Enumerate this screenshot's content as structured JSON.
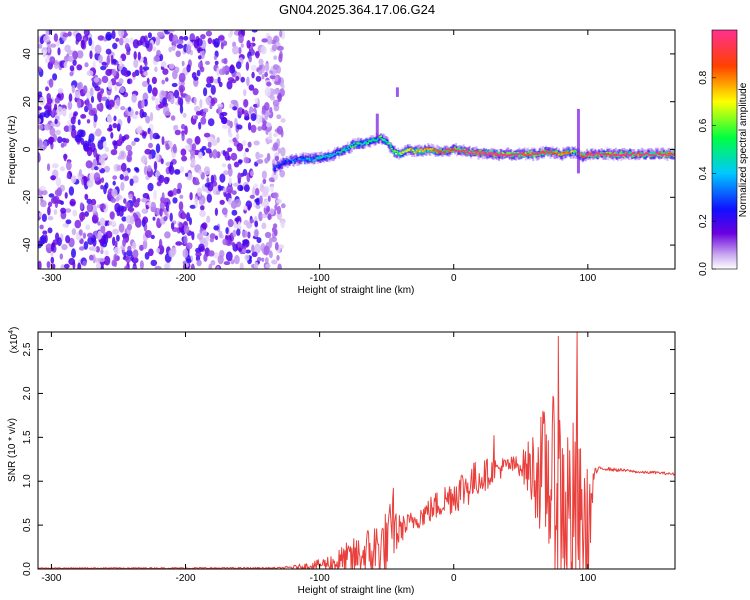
{
  "title": "GN04.2025.364.17.06.G24",
  "colors": {
    "snr_line": "#e8403c",
    "frame": "#000000"
  },
  "chart_data": [
    {
      "type": "heatmap",
      "xlabel": "Height of straight line (km)",
      "ylabel": "Frequency (Hz)",
      "xlim": [
        -310,
        165
      ],
      "ylim": [
        -50,
        50
      ],
      "xticks": [
        -300,
        -200,
        -100,
        0,
        100
      ],
      "yticks": [
        -40,
        -20,
        0,
        20,
        40
      ],
      "colorbar": {
        "label": "Normalized spectral amplitude",
        "range": [
          0.0,
          1.0
        ],
        "ticks": [
          "0.0",
          "0.2",
          "0.4",
          "0.6",
          "0.8"
        ],
        "tick_values": [
          0.0,
          0.2,
          0.4,
          0.6,
          0.8
        ]
      },
      "noise_region": {
        "x_start": -310,
        "x_end": -135,
        "amplitude_range": [
          0.0,
          0.2
        ]
      },
      "trace": {
        "x": [
          -135,
          -125,
          -115,
          -105,
          -95,
          -85,
          -75,
          -65,
          -55,
          -50,
          -45,
          -40,
          -35,
          -30,
          -20,
          -10,
          0,
          10,
          30,
          50,
          60,
          70,
          80,
          85,
          90,
          95,
          100,
          120,
          140,
          165
        ],
        "freq": [
          -8,
          -5,
          -4,
          -4,
          -3,
          -1,
          2,
          3,
          5,
          3,
          -1,
          -2,
          0,
          -1,
          0,
          -1,
          0,
          -1,
          -2,
          -2,
          -2,
          -1,
          -2,
          -1,
          -1,
          -3,
          -2,
          -2,
          -2,
          -2
        ],
        "amplitude": [
          0.25,
          0.3,
          0.35,
          0.4,
          0.45,
          0.45,
          0.5,
          0.5,
          0.55,
          0.55,
          0.6,
          0.6,
          0.7,
          0.75,
          0.8,
          0.9,
          0.95,
          1.0,
          1.0,
          1.0,
          1.0,
          0.9,
          0.8,
          0.8,
          0.6,
          0.9,
          1.0,
          1.0,
          1.0,
          1.0
        ]
      },
      "spikes": [
        {
          "x": -57,
          "freq_from": 5,
          "freq_to": 15
        },
        {
          "x": -42,
          "freq_from": 22,
          "freq_to": 26
        },
        {
          "x": 93,
          "freq_from": -10,
          "freq_to": 17
        }
      ]
    },
    {
      "type": "line",
      "xlabel": "Height of straight line (km)",
      "ylabel": "SNR (10 * v/v)",
      "y_multiplier": "(x10",
      "y_multiplier_exp": "4",
      "y_multiplier_close": ")",
      "xlim": [
        -310,
        165
      ],
      "ylim": [
        0,
        2.7
      ],
      "xticks": [
        -300,
        -200,
        -100,
        0,
        100
      ],
      "yticks": [
        "0.0",
        "0.5",
        "1.0",
        "1.5",
        "2.0",
        "2.5"
      ],
      "ytick_values": [
        0.0,
        0.5,
        1.0,
        1.5,
        2.0,
        2.5
      ],
      "envelope": {
        "x": [
          -310,
          -200,
          -130,
          -120,
          -110,
          -100,
          -90,
          -80,
          -70,
          -60,
          -50,
          -45,
          -40,
          -30,
          -20,
          -10,
          0,
          10,
          20,
          30,
          40,
          50,
          60,
          70,
          80,
          90,
          100,
          105,
          110,
          120,
          130,
          140,
          150,
          165
        ],
        "base": [
          0.01,
          0.01,
          0.01,
          0.02,
          0.03,
          0.05,
          0.07,
          0.1,
          0.15,
          0.2,
          0.28,
          0.4,
          0.45,
          0.55,
          0.65,
          0.75,
          0.85,
          0.95,
          1.05,
          1.12,
          1.18,
          1.18,
          1.12,
          1.05,
          0.8,
          0.5,
          0.35,
          1.1,
          1.15,
          1.13,
          1.12,
          1.1,
          1.1,
          1.08
        ],
        "noise": [
          0.005,
          0.008,
          0.01,
          0.02,
          0.04,
          0.06,
          0.12,
          0.2,
          0.25,
          0.35,
          0.4,
          0.45,
          0.15,
          0.12,
          0.15,
          0.18,
          0.22,
          0.25,
          0.2,
          0.15,
          0.1,
          0.12,
          0.5,
          0.9,
          1.2,
          1.2,
          0.8,
          0.05,
          0.02,
          0.02,
          0.015,
          0.015,
          0.015,
          0.015
        ]
      },
      "peaks": [
        {
          "x": -45,
          "y": 0.92
        },
        {
          "x": 30,
          "y": 1.52
        },
        {
          "x": 78,
          "y": 2.65
        },
        {
          "x": 92,
          "y": 2.7
        },
        {
          "x": 88,
          "y": 0.08
        }
      ]
    }
  ]
}
